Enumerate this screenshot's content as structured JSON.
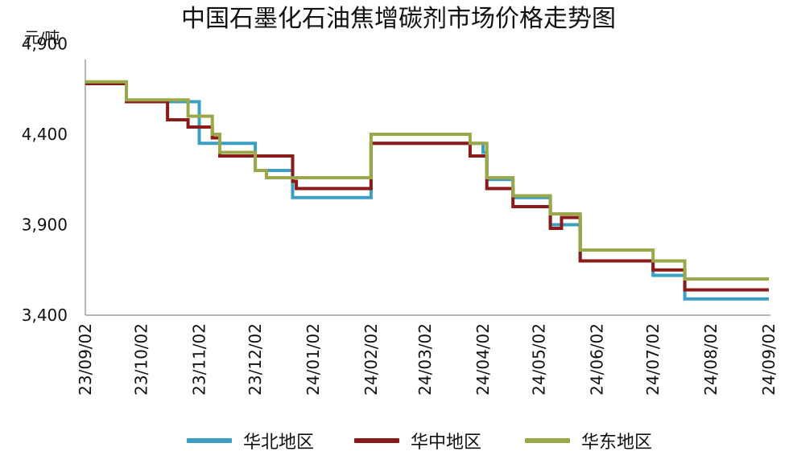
{
  "chart_data": {
    "type": "line",
    "title": "中国石墨化石油焦增碳剂市场价格走势图",
    "ylabel": "元/吨",
    "xlabel": "",
    "ylim": [
      3400,
      5000
    ],
    "yticks": [
      3400,
      3900,
      4400,
      4900
    ],
    "ytick_labels": [
      "3,400",
      "3,900",
      "4,400",
      "4,900"
    ],
    "xlim": [
      "2023-09-02",
      "2024-09-02"
    ],
    "xtick_labels": [
      "23/09/02",
      "23/10/02",
      "23/11/02",
      "23/12/02",
      "24/01/02",
      "24/02/02",
      "24/03/02",
      "24/04/02",
      "24/05/02",
      "24/06/02",
      "24/07/02",
      "24/08/02",
      "24/09/02"
    ],
    "xticks": [
      "2023-09-02",
      "2023-10-02",
      "2023-11-02",
      "2023-12-02",
      "2024-01-02",
      "2024-02-02",
      "2024-03-02",
      "2024-04-02",
      "2024-05-02",
      "2024-06-02",
      "2024-07-02",
      "2024-08-02",
      "2024-09-02"
    ],
    "grid": false,
    "legend_position": "bottom",
    "step": true,
    "series": [
      {
        "name": "华北地区",
        "color": "#3a9fc0",
        "points": [
          [
            "2023-09-02",
            4680
          ],
          [
            "2023-09-24",
            4580
          ],
          [
            "2023-11-02",
            4350
          ],
          [
            "2023-12-02",
            4200
          ],
          [
            "2023-12-22",
            4050
          ],
          [
            "2024-02-02",
            4350
          ],
          [
            "2024-04-02",
            4300
          ],
          [
            "2024-04-04",
            4150
          ],
          [
            "2024-04-18",
            4050
          ],
          [
            "2024-05-08",
            3900
          ],
          [
            "2024-05-24",
            3700
          ],
          [
            "2024-07-02",
            3620
          ],
          [
            "2024-07-19",
            3490
          ],
          [
            "2024-09-02",
            3490
          ]
        ]
      },
      {
        "name": "华中地区",
        "color": "#8b1a1a",
        "points": [
          [
            "2023-09-02",
            4680
          ],
          [
            "2023-09-24",
            4580
          ],
          [
            "2023-10-16",
            4480
          ],
          [
            "2023-10-27",
            4440
          ],
          [
            "2023-11-09",
            4380
          ],
          [
            "2023-11-13",
            4280
          ],
          [
            "2023-12-22",
            4140
          ],
          [
            "2023-12-24",
            4100
          ],
          [
            "2024-02-02",
            4350
          ],
          [
            "2024-03-26",
            4280
          ],
          [
            "2024-04-04",
            4100
          ],
          [
            "2024-04-18",
            4000
          ],
          [
            "2024-05-08",
            3880
          ],
          [
            "2024-05-14",
            3940
          ],
          [
            "2024-05-24",
            3700
          ],
          [
            "2024-07-02",
            3650
          ],
          [
            "2024-07-19",
            3540
          ],
          [
            "2024-09-02",
            3540
          ]
        ]
      },
      {
        "name": "华东地区",
        "color": "#9aa84a",
        "points": [
          [
            "2023-09-02",
            4690
          ],
          [
            "2023-09-24",
            4590
          ],
          [
            "2023-10-27",
            4500
          ],
          [
            "2023-11-09",
            4400
          ],
          [
            "2023-11-13",
            4300
          ],
          [
            "2023-12-02",
            4200
          ],
          [
            "2023-12-08",
            4160
          ],
          [
            "2024-02-02",
            4400
          ],
          [
            "2024-03-26",
            4350
          ],
          [
            "2024-04-04",
            4160
          ],
          [
            "2024-04-18",
            4060
          ],
          [
            "2024-05-08",
            3960
          ],
          [
            "2024-05-24",
            3760
          ],
          [
            "2024-07-02",
            3700
          ],
          [
            "2024-07-19",
            3600
          ],
          [
            "2024-09-02",
            3600
          ]
        ]
      }
    ]
  }
}
